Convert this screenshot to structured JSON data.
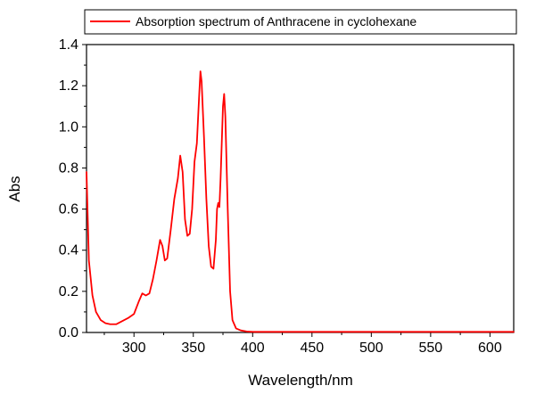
{
  "chart_data": {
    "type": "line",
    "xlabel": "Wavelength/nm",
    "ylabel": "Abs",
    "xlim": [
      260,
      620
    ],
    "ylim": [
      0,
      1.4
    ],
    "x_ticks": [
      300,
      350,
      400,
      450,
      500,
      550,
      600
    ],
    "y_ticks": [
      0.0,
      0.2,
      0.4,
      0.6,
      0.8,
      1.0,
      1.2,
      1.4
    ],
    "x_tick_labels": [
      "300",
      "350",
      "400",
      "450",
      "500",
      "550",
      "600"
    ],
    "y_tick_labels": [
      "0.0",
      "0.2",
      "0.4",
      "0.6",
      "0.8",
      "1.0",
      "1.2",
      "1.4"
    ],
    "grid": false,
    "legend": {
      "position": "top",
      "entries": [
        "Absorption spectrum of Anthracene in cyclohexane"
      ]
    },
    "series": [
      {
        "name": "Absorption spectrum of Anthracene in cyclohexane",
        "color": "#ff0000",
        "x": [
          260,
          262,
          265,
          268,
          272,
          276,
          280,
          285,
          290,
          295,
          300,
          304,
          307,
          310,
          313,
          316,
          319,
          322,
          324,
          326,
          328,
          331,
          334,
          337,
          339,
          341,
          343,
          345,
          347,
          349,
          351,
          353,
          355,
          356,
          357,
          359,
          361,
          363,
          365,
          367,
          369,
          370,
          371,
          372,
          373,
          375,
          376,
          377,
          379,
          381,
          383,
          386,
          390,
          395,
          400,
          450,
          500,
          550,
          600,
          620
        ],
        "y": [
          0.78,
          0.35,
          0.18,
          0.1,
          0.06,
          0.045,
          0.04,
          0.04,
          0.055,
          0.07,
          0.09,
          0.15,
          0.19,
          0.18,
          0.19,
          0.26,
          0.35,
          0.45,
          0.42,
          0.35,
          0.36,
          0.5,
          0.65,
          0.75,
          0.86,
          0.78,
          0.55,
          0.47,
          0.48,
          0.6,
          0.83,
          0.92,
          1.16,
          1.27,
          1.22,
          0.95,
          0.65,
          0.42,
          0.32,
          0.31,
          0.45,
          0.6,
          0.63,
          0.61,
          0.75,
          1.1,
          1.16,
          1.05,
          0.6,
          0.2,
          0.06,
          0.02,
          0.01,
          0.005,
          0.003,
          0.003,
          0.003,
          0.003,
          0.003,
          0.003
        ]
      }
    ]
  }
}
